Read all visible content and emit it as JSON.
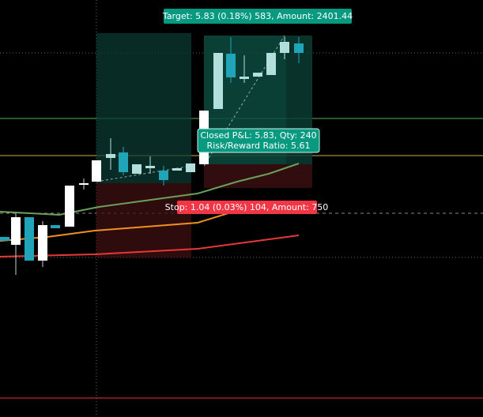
{
  "target_label": "Target: 5.83 (0.18%) 583, Amount: 2401.44",
  "closed_label": {
    "line1": "Closed P&L: 5.83, Qty: 240",
    "line2": "Risk/Reward Ratio: 5.61"
  },
  "stop_label": "Stop: 1.04 (0.03%) 104, Amount: 750"
}
